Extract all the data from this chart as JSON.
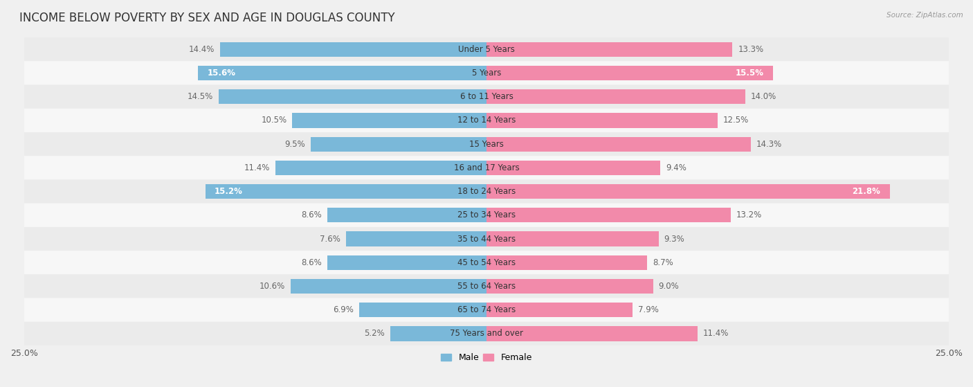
{
  "title": "INCOME BELOW POVERTY BY SEX AND AGE IN DOUGLAS COUNTY",
  "source": "Source: ZipAtlas.com",
  "categories": [
    "Under 5 Years",
    "5 Years",
    "6 to 11 Years",
    "12 to 14 Years",
    "15 Years",
    "16 and 17 Years",
    "18 to 24 Years",
    "25 to 34 Years",
    "35 to 44 Years",
    "45 to 54 Years",
    "55 to 64 Years",
    "65 to 74 Years",
    "75 Years and over"
  ],
  "male": [
    14.4,
    15.6,
    14.5,
    10.5,
    9.5,
    11.4,
    15.2,
    8.6,
    7.6,
    8.6,
    10.6,
    6.9,
    5.2
  ],
  "female": [
    13.3,
    15.5,
    14.0,
    12.5,
    14.3,
    9.4,
    21.8,
    13.2,
    9.3,
    8.7,
    9.0,
    7.9,
    11.4
  ],
  "male_color": "#7ab8d9",
  "female_color": "#f28aaa",
  "male_highlight": [
    1,
    6
  ],
  "female_highlight": [
    1,
    6
  ],
  "male_label_color_default": "#666666",
  "female_label_color_default": "#666666",
  "male_label_color_highlight": "#ffffff",
  "female_label_color_highlight": "#ffffff",
  "xlim": 25.0,
  "bar_height": 0.62,
  "row_colors": [
    "#ebebeb",
    "#f7f7f7"
  ],
  "title_fontsize": 12,
  "label_fontsize": 8.5,
  "category_fontsize": 8.5,
  "axis_fontsize": 9
}
